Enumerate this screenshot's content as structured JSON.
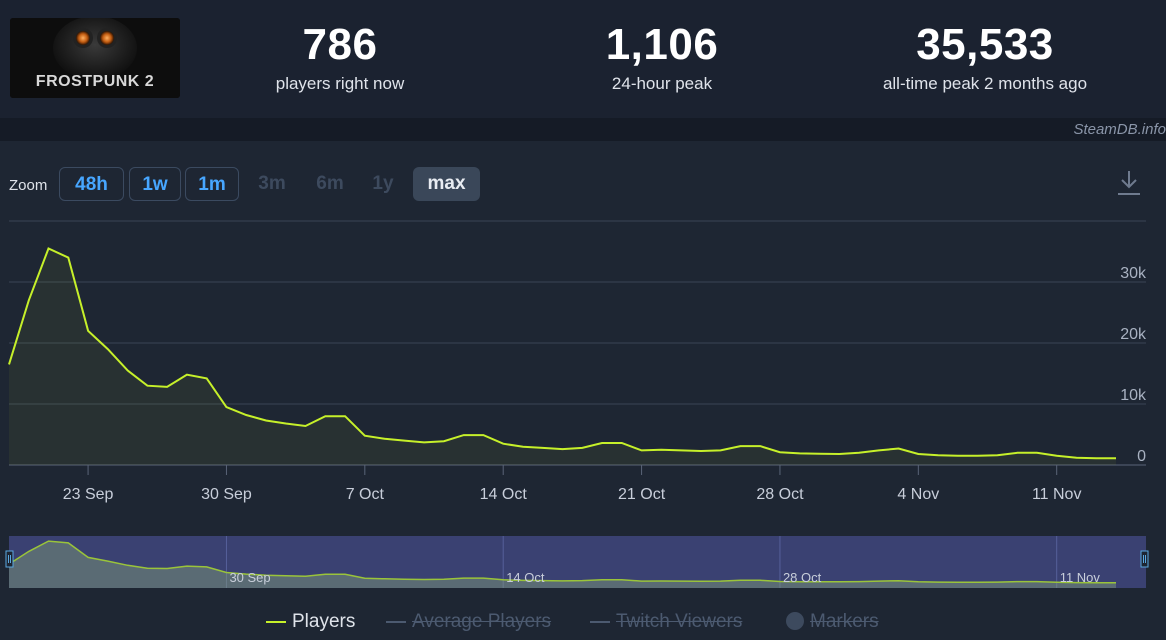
{
  "header": {
    "logo_text": "FROSTPUNK 2",
    "stats": [
      {
        "value": "786",
        "label": "players right now"
      },
      {
        "value": "1,106",
        "label": "24-hour peak"
      },
      {
        "value": "35,533",
        "label": "all-time peak 2 months ago"
      }
    ],
    "credit": "SteamDB.info"
  },
  "zoom": {
    "label": "Zoom",
    "buttons": [
      {
        "label": "48h",
        "state": "link"
      },
      {
        "label": "1w",
        "state": "link"
      },
      {
        "label": "1m",
        "state": "link"
      },
      {
        "label": "3m",
        "state": "disabled"
      },
      {
        "label": "6m",
        "state": "disabled"
      },
      {
        "label": "1y",
        "state": "disabled"
      },
      {
        "label": "max",
        "state": "selected"
      }
    ]
  },
  "icons": {
    "download": "download-icon",
    "nav_left": "navigator-left-handle-icon",
    "nav_right": "navigator-right-handle-icon",
    "markers": "marker-dot-icon"
  },
  "colors": {
    "players": "#c6f02a",
    "grid": "#3a4456",
    "navigator_fill": "#3c4377",
    "accent_link": "#47a6ff"
  },
  "chart_data": {
    "type": "line",
    "x_axis": {
      "type": "date",
      "tick_labels": [
        "23 Sep",
        "30 Sep",
        "7 Oct",
        "14 Oct",
        "21 Oct",
        "28 Oct",
        "4 Nov",
        "11 Nov"
      ]
    },
    "y_axis": {
      "tick_labels": [
        "0",
        "10k",
        "20k",
        "30k"
      ],
      "ylim": [
        0,
        40000
      ],
      "position": "right"
    },
    "grid": true,
    "legend_position": "bottom",
    "series": [
      {
        "name": "Players",
        "visible": true,
        "points": [
          [
            "2024-09-19",
            16500
          ],
          [
            "2024-09-20",
            27000
          ],
          [
            "2024-09-21",
            35500
          ],
          [
            "2024-09-22",
            34000
          ],
          [
            "2024-09-23",
            22000
          ],
          [
            "2024-09-24",
            19000
          ],
          [
            "2024-09-25",
            15500
          ],
          [
            "2024-09-26",
            13000
          ],
          [
            "2024-09-27",
            12800
          ],
          [
            "2024-09-28",
            14800
          ],
          [
            "2024-09-29",
            14200
          ],
          [
            "2024-09-30",
            9500
          ],
          [
            "2024-10-01",
            8200
          ],
          [
            "2024-10-02",
            7300
          ],
          [
            "2024-10-03",
            6800
          ],
          [
            "2024-10-04",
            6400
          ],
          [
            "2024-10-05",
            8000
          ],
          [
            "2024-10-06",
            8000
          ],
          [
            "2024-10-07",
            4800
          ],
          [
            "2024-10-08",
            4300
          ],
          [
            "2024-10-09",
            4000
          ],
          [
            "2024-10-10",
            3700
          ],
          [
            "2024-10-11",
            3900
          ],
          [
            "2024-10-12",
            4900
          ],
          [
            "2024-10-13",
            4900
          ],
          [
            "2024-10-14",
            3500
          ],
          [
            "2024-10-15",
            3000
          ],
          [
            "2024-10-16",
            2800
          ],
          [
            "2024-10-17",
            2600
          ],
          [
            "2024-10-18",
            2800
          ],
          [
            "2024-10-19",
            3600
          ],
          [
            "2024-10-20",
            3600
          ],
          [
            "2024-10-21",
            2400
          ],
          [
            "2024-10-22",
            2500
          ],
          [
            "2024-10-23",
            2400
          ],
          [
            "2024-10-24",
            2300
          ],
          [
            "2024-10-25",
            2400
          ],
          [
            "2024-10-26",
            3100
          ],
          [
            "2024-10-27",
            3100
          ],
          [
            "2024-10-28",
            2100
          ],
          [
            "2024-10-29",
            1900
          ],
          [
            "2024-10-30",
            1850
          ],
          [
            "2024-10-31",
            1800
          ],
          [
            "2024-11-01",
            2000
          ],
          [
            "2024-11-02",
            2400
          ],
          [
            "2024-11-03",
            2700
          ],
          [
            "2024-11-04",
            1800
          ],
          [
            "2024-11-05",
            1600
          ],
          [
            "2024-11-06",
            1500
          ],
          [
            "2024-11-07",
            1500
          ],
          [
            "2024-11-08",
            1600
          ],
          [
            "2024-11-09",
            2000
          ],
          [
            "2024-11-10",
            2000
          ],
          [
            "2024-11-11",
            1500
          ],
          [
            "2024-11-12",
            1200
          ],
          [
            "2024-11-13",
            1100
          ],
          [
            "2024-11-14",
            1106
          ]
        ]
      },
      {
        "name": "Average Players",
        "visible": false
      },
      {
        "name": "Twitch Viewers",
        "visible": false
      },
      {
        "name": "Markers",
        "visible": false
      }
    ],
    "navigator_labels": [
      "30 Sep",
      "14 Oct",
      "28 Oct",
      "11 Nov"
    ]
  }
}
